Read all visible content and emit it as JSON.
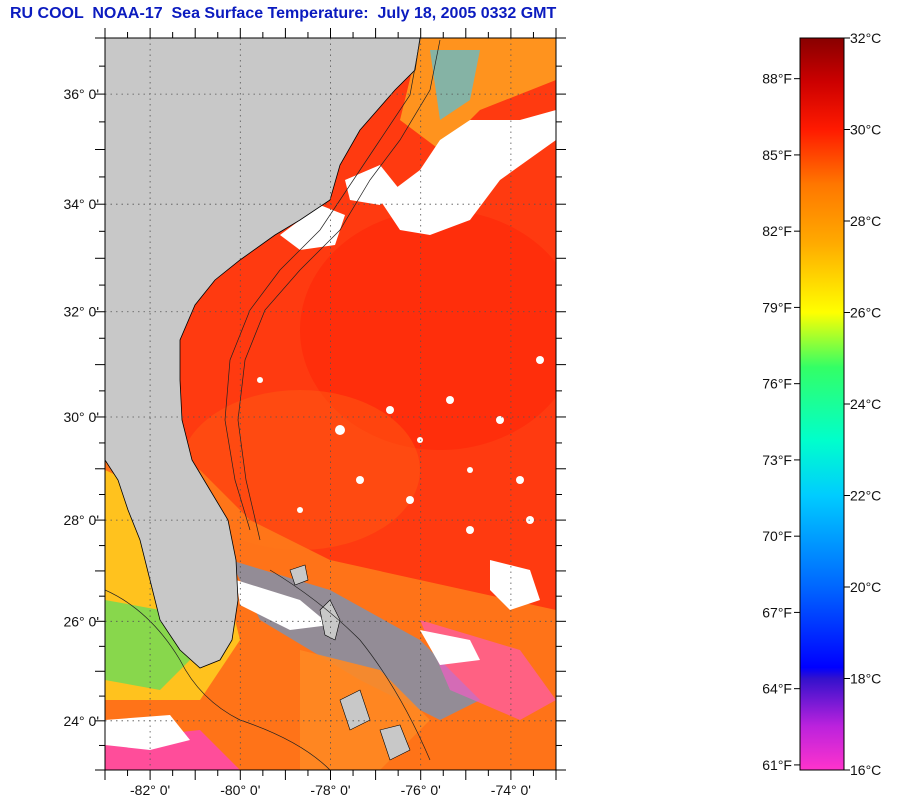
{
  "title": "RU COOL  NOAA-17  Sea Surface Temperature:  July 18, 2005 0332 GMT",
  "map": {
    "lat_labels": [
      {
        "lat": 36,
        "label": "36° 0'"
      },
      {
        "lat": 34,
        "label": "34° 0'"
      },
      {
        "lat": 32,
        "label": "32° 0'"
      },
      {
        "lat": 30,
        "label": "30° 0'"
      },
      {
        "lat": 28,
        "label": "28° 0'"
      },
      {
        "lat": 26,
        "label": "26° 0'"
      },
      {
        "lat": 24,
        "label": "24° 0'"
      }
    ],
    "lon_labels": [
      {
        "lon": -82,
        "label": "-82° 0'"
      },
      {
        "lon": -80,
        "label": "-80° 0'"
      },
      {
        "lon": -78,
        "label": "-78° 0'"
      },
      {
        "lon": -76,
        "label": "-76° 0'"
      },
      {
        "lon": -74,
        "label": "-74° 0'"
      }
    ],
    "lon_range": [
      -83,
      -73
    ],
    "lat_range": [
      23,
      37
    ],
    "land_color": "#c8c8c8",
    "ocean_color": "#ff3a10",
    "cloud_color": "#ffffff"
  },
  "colorbar": {
    "min_c": 16,
    "max_c": 32,
    "celsius_labels": [
      "32°C",
      "30°C",
      "28°C",
      "26°C",
      "24°C",
      "22°C",
      "20°C",
      "18°C",
      "16°C"
    ],
    "fahrenheit_labels": [
      "88°F",
      "85°F",
      "82°F",
      "79°F",
      "76°F",
      "73°F",
      "70°F",
      "67°F",
      "64°F",
      "61°F"
    ],
    "fahrenheit_values": [
      88,
      85,
      82,
      79,
      76,
      73,
      70,
      67,
      64,
      61
    ]
  }
}
